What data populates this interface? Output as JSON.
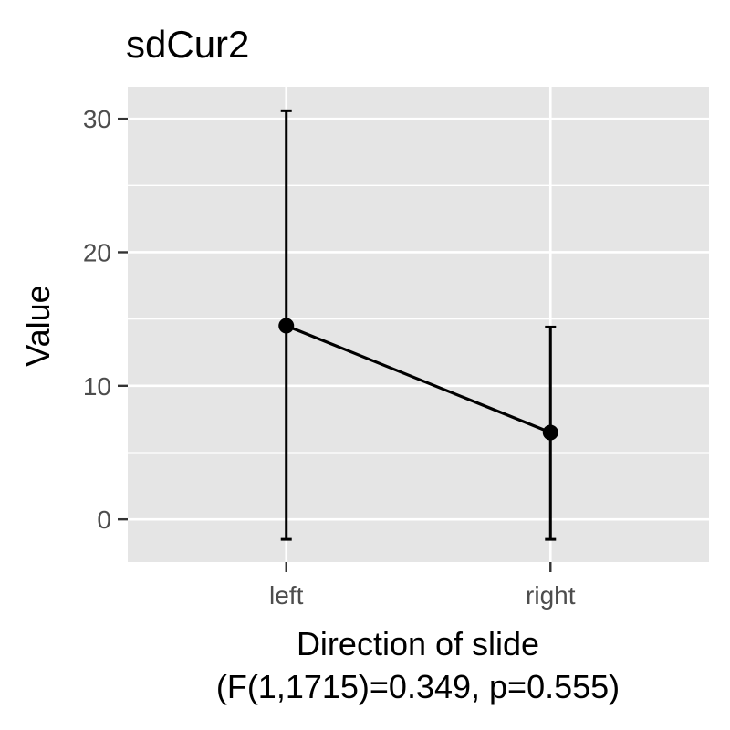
{
  "chart_data": {
    "type": "line",
    "title": "sdCur2",
    "xlabel": "Direction of slide",
    "xlabel_sub": "(F(1,1715)=0.349, p=0.555)",
    "ylabel": "Value",
    "categories": [
      "left",
      "right"
    ],
    "series": [
      {
        "values": [
          14.5,
          6.5
        ],
        "error_low": [
          -1.5,
          -1.5
        ],
        "error_high": [
          30.6,
          14.4
        ]
      }
    ],
    "ylim": [
      -3.2,
      32.4
    ],
    "yticks": [
      0,
      10,
      20,
      30
    ],
    "ytick_labels": [
      "0",
      "10",
      "20",
      "30"
    ],
    "grid": true,
    "legend": "none",
    "colors": {
      "panel": "#e5e5e5",
      "grid": "#ffffff",
      "series": "#000000",
      "tick_text": "#4d4d4d",
      "tick_mark": "#333333"
    }
  }
}
